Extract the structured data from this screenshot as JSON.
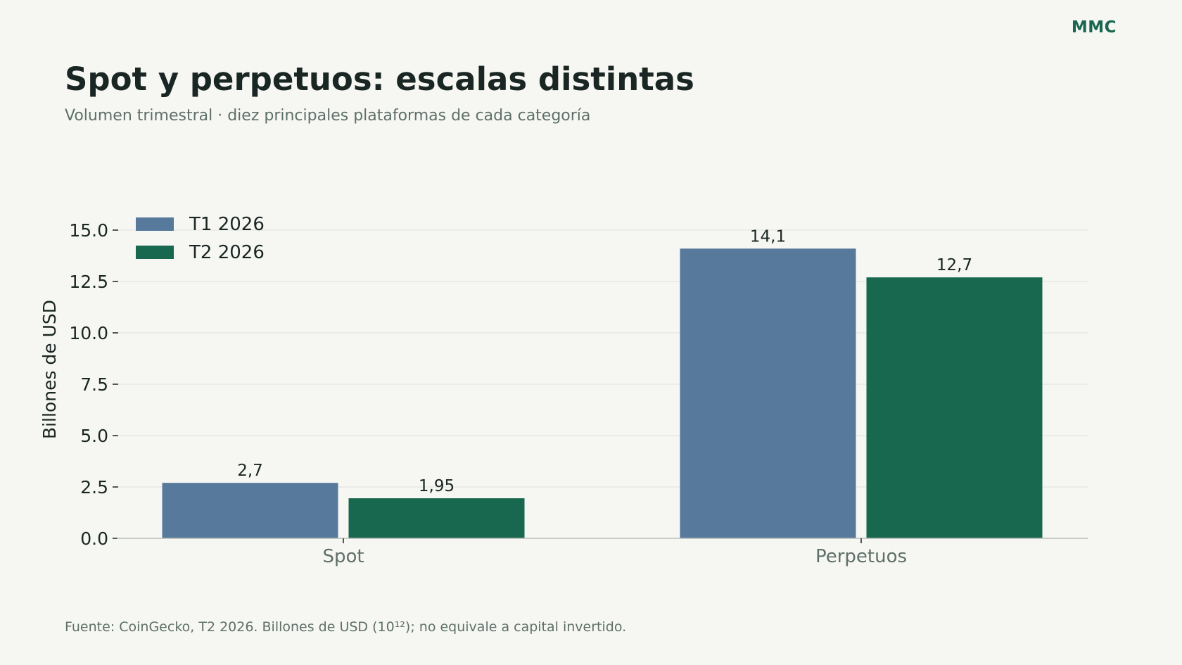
{
  "brand": "MMC",
  "title": "Spot y perpetuos: escalas distintas",
  "subtitle": "Volumen trimestral · diez principales plataformas de cada categoría",
  "footnote": "Fuente: CoinGecko, T2 2026. Billones de USD (10¹²); no equivale a capital invertido.",
  "colors": {
    "t1": "#577a9c",
    "t2": "#18684f",
    "grid": "#e7e9e4",
    "axis": "#b7bdb9"
  },
  "chart_data": {
    "type": "bar",
    "categories": [
      "Spot",
      "Perpetuos"
    ],
    "series": [
      {
        "name": "T1 2026",
        "values": [
          2.7,
          14.1
        ],
        "labels": [
          "2,7",
          "14,1"
        ]
      },
      {
        "name": "T2 2026",
        "values": [
          1.95,
          12.7
        ],
        "labels": [
          "1,95",
          "12,7"
        ]
      }
    ],
    "ylabel": "Billones de USD",
    "ylim": [
      0,
      15.8
    ],
    "yticks": [
      0,
      2.5,
      5,
      7.5,
      10,
      12.5,
      15
    ],
    "ytick_labels": [
      "0.0",
      "2.5",
      "5.0",
      "7.5",
      "10.0",
      "12.5",
      "15.0"
    ],
    "grid": true,
    "legend_position": "top-left"
  }
}
